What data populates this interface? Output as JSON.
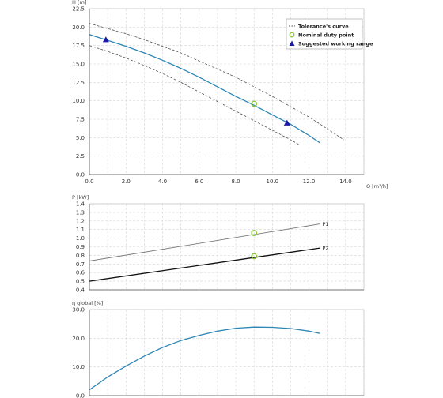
{
  "chart_data": [
    {
      "id": "head",
      "type": "line",
      "ylabel": "H [m]",
      "xlabel": "Q [m³/h]",
      "xlim": [
        0,
        15
      ],
      "ylim": [
        0,
        22.5
      ],
      "xticks": [
        0,
        2,
        4,
        6,
        8,
        10,
        12,
        14
      ],
      "xtick_labels": [
        "0.0",
        "2.0",
        "4.0",
        "6.0",
        "8.0",
        "10.0",
        "12.0",
        "14.0"
      ],
      "yticks": [
        0,
        2.5,
        5,
        7.5,
        10,
        12.5,
        15,
        17.5,
        20,
        22.5
      ],
      "ytick_labels": [
        "0.0",
        "2.5",
        "5.0",
        "7.5",
        "10.0",
        "12.5",
        "15.0",
        "17.5",
        "20.0",
        "22.5"
      ],
      "grid": true,
      "legend_position": "top-right",
      "legend": [
        {
          "label": "Tolerance's curve",
          "marker": "dashed-line"
        },
        {
          "label": "Nominal duty point",
          "marker": "circle"
        },
        {
          "label": "Suggested working range",
          "marker": "triangle"
        }
      ],
      "colors": {
        "curve": "#2e86b5",
        "tolerance": "#555555",
        "nominal": "#8cc63f",
        "range": "#1a1aa6"
      },
      "series": [
        {
          "role": "main",
          "x": [
            0,
            1,
            2,
            3,
            4,
            5,
            6,
            7,
            8,
            9,
            10,
            11,
            12,
            12.6
          ],
          "y": [
            19.0,
            18.2,
            17.4,
            16.5,
            15.5,
            14.4,
            13.2,
            11.9,
            10.6,
            9.4,
            8.1,
            6.8,
            5.3,
            4.3
          ]
        },
        {
          "role": "tolerance-upper",
          "x": [
            0,
            1,
            2,
            3,
            4,
            5,
            6,
            7,
            8,
            9,
            10,
            11,
            12,
            13,
            13.9
          ],
          "y": [
            20.5,
            19.8,
            19.1,
            18.3,
            17.4,
            16.5,
            15.4,
            14.3,
            13.2,
            11.9,
            10.6,
            9.2,
            7.8,
            6.2,
            4.7
          ]
        },
        {
          "role": "tolerance-lower",
          "x": [
            0,
            1,
            2,
            3,
            4,
            5,
            6,
            7,
            8,
            9,
            10,
            11,
            11.5
          ],
          "y": [
            17.5,
            16.7,
            15.8,
            14.8,
            13.7,
            12.5,
            11.2,
            9.9,
            8.6,
            7.3,
            6.0,
            4.7,
            4.0
          ]
        }
      ],
      "nominal_point": {
        "x": 9.0,
        "y": 9.6
      },
      "working_range": [
        {
          "x": 0.9,
          "y": 18.3
        },
        {
          "x": 10.8,
          "y": 7.0
        }
      ]
    },
    {
      "id": "power",
      "type": "line",
      "ylabel": "P [kW]",
      "xlim": [
        0,
        15
      ],
      "ylim": [
        0.4,
        1.4
      ],
      "yticks": [
        0.4,
        0.5,
        0.6,
        0.7,
        0.8,
        0.9,
        1.0,
        1.1,
        1.2,
        1.3,
        1.4
      ],
      "ytick_labels": [
        "0.4",
        "0.5",
        "0.6",
        "0.7",
        "0.8",
        "0.9",
        "1.0",
        "1.1",
        "1.2",
        "1.3",
        "1.4"
      ],
      "grid": true,
      "series": [
        {
          "name": "P1",
          "color": "#777777",
          "x": [
            0,
            12.6
          ],
          "y": [
            0.735,
            1.165
          ]
        },
        {
          "name": "P2",
          "color": "#111111",
          "x": [
            0,
            12.6
          ],
          "y": [
            0.5,
            0.885
          ]
        }
      ],
      "nominal_points": [
        {
          "x": 9.0,
          "y": 1.06
        },
        {
          "x": 9.0,
          "y": 0.79
        }
      ]
    },
    {
      "id": "efficiency",
      "type": "line",
      "ylabel": "η global [%]",
      "xlim": [
        0,
        15
      ],
      "ylim": [
        0,
        30
      ],
      "yticks": [
        0,
        10,
        20,
        30
      ],
      "ytick_labels": [
        "0.0",
        "10.0",
        "20.0",
        "30.0"
      ],
      "grid": true,
      "series": [
        {
          "role": "main",
          "color": "#2e86b5",
          "x": [
            0,
            1,
            2,
            3,
            4,
            5,
            6,
            7,
            8,
            9,
            10,
            11,
            12,
            12.6
          ],
          "y": [
            2.0,
            6.5,
            10.3,
            13.8,
            16.8,
            19.2,
            21.0,
            22.5,
            23.5,
            23.9,
            23.8,
            23.4,
            22.5,
            21.7
          ]
        }
      ]
    }
  ]
}
